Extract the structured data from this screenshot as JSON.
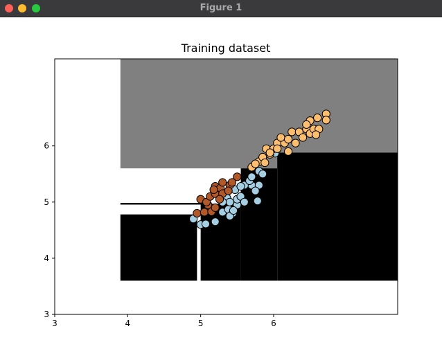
{
  "window": {
    "title": "Figure 1",
    "buttons": {
      "close_color": "#fe5f57",
      "minimize_color": "#febc2e",
      "maximize_color": "#28c840"
    }
  },
  "chart_data": {
    "type": "scatter",
    "title": "Training dataset",
    "xlabel": "",
    "ylabel": "",
    "xlim": [
      3,
      7.7
    ],
    "ylim": [
      3,
      7.55
    ],
    "xticks": [
      "3",
      "4",
      "5",
      "6"
    ],
    "yticks": [
      "3",
      "4",
      "5",
      "6"
    ],
    "grid": false,
    "legend": "none",
    "colors": {
      "class0": "#a6cee3",
      "class1": "#b15928",
      "class2": "#fdbf6f",
      "region_gray": "#808080",
      "region_black": "#000000",
      "point_edge": "#000000"
    },
    "regions": [
      {
        "color": "#808080",
        "x": [
          3.9,
          7.7
        ],
        "y": [
          5.6,
          7.55
        ]
      },
      {
        "color": "#000000",
        "x": [
          6.05,
          7.7
        ],
        "y": [
          3.6,
          5.88
        ]
      },
      {
        "color": "#000000",
        "x": [
          5.55,
          6.05
        ],
        "y": [
          3.6,
          5.6
        ]
      },
      {
        "color": "#000000",
        "x": [
          5.0,
          5.55
        ],
        "y": [
          3.6,
          4.97
        ]
      },
      {
        "color": "#000000",
        "x": [
          3.9,
          4.95
        ],
        "y": [
          3.6,
          4.78
        ]
      },
      {
        "color": "#000000",
        "x": [
          3.9,
          5.1
        ],
        "y": [
          4.955,
          4.985
        ]
      }
    ],
    "series": [
      {
        "color": "#a6cee3",
        "points": [
          [
            4.9,
            4.7
          ],
          [
            5.0,
            4.6
          ],
          [
            5.07,
            4.61
          ],
          [
            5.2,
            4.65
          ],
          [
            5.3,
            4.82
          ],
          [
            5.38,
            4.87
          ],
          [
            5.44,
            4.8
          ],
          [
            5.4,
            4.75
          ],
          [
            5.5,
            4.95
          ],
          [
            5.5,
            5.05
          ],
          [
            5.55,
            5.1
          ],
          [
            5.6,
            5.0
          ],
          [
            5.7,
            5.3
          ],
          [
            5.78,
            5.02
          ],
          [
            5.8,
            5.3
          ],
          [
            5.75,
            5.2
          ],
          [
            5.6,
            5.3
          ],
          [
            5.67,
            5.38
          ],
          [
            5.47,
            5.22
          ],
          [
            5.36,
            5.07
          ],
          [
            5.55,
            5.28
          ],
          [
            5.7,
            5.45
          ],
          [
            5.8,
            5.55
          ],
          [
            5.85,
            5.5
          ],
          [
            6.02,
            5.87
          ],
          [
            5.4,
            5.0
          ],
          [
            5.45,
            4.85
          ],
          [
            5.3,
            5.0
          ]
        ]
      },
      {
        "color": "#b15928",
        "points": [
          [
            4.95,
            4.8
          ],
          [
            5.05,
            4.82
          ],
          [
            5.15,
            4.83
          ],
          [
            5.1,
            4.95
          ],
          [
            5.2,
            4.9
          ],
          [
            5.0,
            5.05
          ],
          [
            5.08,
            5.0
          ],
          [
            5.13,
            5.1
          ],
          [
            5.2,
            5.15
          ],
          [
            5.2,
            5.28
          ],
          [
            5.27,
            5.25
          ],
          [
            5.3,
            5.35
          ],
          [
            5.4,
            5.3
          ],
          [
            5.3,
            5.15
          ],
          [
            5.38,
            5.2
          ],
          [
            5.5,
            5.45
          ],
          [
            5.43,
            5.35
          ],
          [
            5.26,
            5.05
          ],
          [
            5.18,
            5.22
          ]
        ]
      },
      {
        "color": "#fdbf6f",
        "points": [
          [
            5.7,
            5.62
          ],
          [
            5.8,
            5.72
          ],
          [
            5.85,
            5.8
          ],
          [
            5.95,
            5.85
          ],
          [
            5.9,
            5.95
          ],
          [
            6.0,
            5.95
          ],
          [
            6.05,
            6.05
          ],
          [
            6.15,
            6.05
          ],
          [
            6.1,
            6.15
          ],
          [
            6.2,
            6.12
          ],
          [
            6.25,
            6.25
          ],
          [
            6.3,
            6.05
          ],
          [
            6.2,
            5.9
          ],
          [
            6.35,
            6.25
          ],
          [
            6.45,
            6.3
          ],
          [
            6.5,
            6.22
          ],
          [
            6.55,
            6.3
          ],
          [
            6.6,
            6.5
          ],
          [
            6.5,
            6.45
          ],
          [
            6.45,
            6.38
          ],
          [
            6.72,
            6.57
          ],
          [
            6.72,
            6.46
          ],
          [
            6.62,
            6.3
          ],
          [
            6.58,
            6.2
          ],
          [
            6.4,
            6.15
          ],
          [
            6.05,
            5.95
          ],
          [
            5.95,
            5.88
          ],
          [
            5.88,
            5.7
          ],
          [
            5.75,
            5.68
          ]
        ]
      }
    ]
  }
}
